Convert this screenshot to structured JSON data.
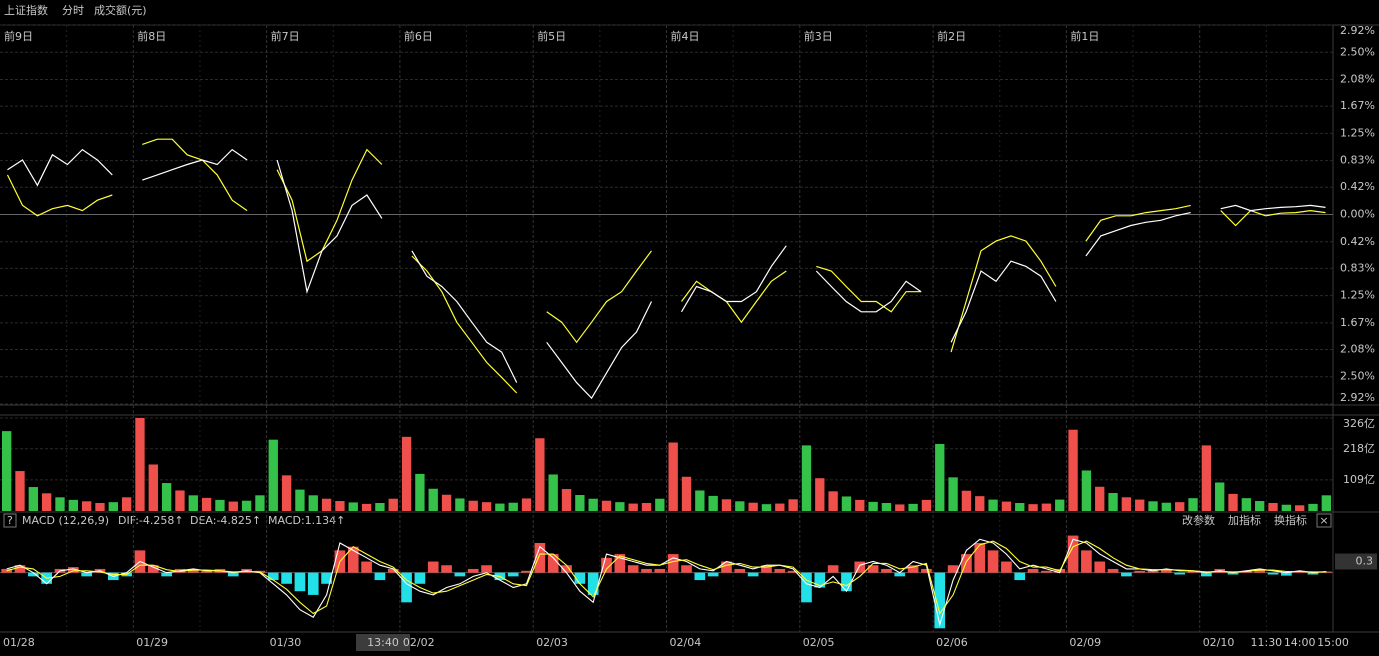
{
  "header": {
    "title": "上证指数",
    "tabs": [
      "分时",
      "成交额(元)"
    ]
  },
  "day_labels": [
    "前9日",
    "前8日",
    "前7日",
    "前6日",
    "前5日",
    "前4日",
    "前3日",
    "前2日",
    "前1日"
  ],
  "x_labels": [
    "01/28",
    "01/29",
    "01/30",
    "02/02",
    "02/03",
    "02/04",
    "02/05",
    "02/06",
    "02/09",
    "02/10",
    "11:30",
    "14:00",
    "15:00"
  ],
  "cursor_label": "13:40",
  "macd_header": {
    "help": "?",
    "name": "MACD (12,26,9)",
    "indicators": [
      {
        "label": "DIF:-4.258↑",
        "color": "#ffffff"
      },
      {
        "label": "DEA:-4.825↑",
        "color": "#ffff33"
      },
      {
        "label": "MACD:1.134↑",
        "color": "#ff4b4b"
      }
    ],
    "tools": [
      "改参数",
      "加指标",
      "换指标"
    ],
    "close": "×"
  },
  "chart_data": [
    {
      "type": "line",
      "ylim": [
        -2.92,
        2.92
      ],
      "yticks": [
        {
          "value": 2.92,
          "label": "2.92%"
        },
        {
          "value": 2.5,
          "label": "2.50%"
        },
        {
          "value": 2.08,
          "label": "2.08%"
        },
        {
          "value": 1.67,
          "label": "1.67%"
        },
        {
          "value": 1.25,
          "label": "1.25%"
        },
        {
          "value": 0.83,
          "label": "0.83%"
        },
        {
          "value": 0.42,
          "label": "0.42%"
        },
        {
          "value": 0,
          "label": "0.00%"
        },
        {
          "value": -0.42,
          "label": "0.42%"
        },
        {
          "value": -0.83,
          "label": "0.83%"
        },
        {
          "value": -1.25,
          "label": "1.25%"
        },
        {
          "value": -1.67,
          "label": "1.67%"
        },
        {
          "value": -2.08,
          "label": "2.08%"
        },
        {
          "value": -2.5,
          "label": "2.50%"
        },
        {
          "value": -2.92,
          "label": "2.92%"
        }
      ],
      "series": [
        {
          "color": "#ffff33",
          "values": [
            0.61,
            0.14,
            -0.02,
            0.09,
            0.14,
            0.06,
            0.22,
            0.3,
            null,
            1.08,
            1.16,
            1.16,
            0.92,
            0.84,
            0.61,
            0.22,
            0.06,
            null,
            0.69,
            0.22,
            -0.72,
            -0.56,
            -0.09,
            0.53,
            1.0,
            0.77,
            null,
            -0.64,
            -0.87,
            -1.19,
            -1.66,
            -1.97,
            -2.28,
            -2.51,
            -2.75,
            null,
            -1.5,
            -1.66,
            -1.97,
            -1.66,
            -1.34,
            -1.19,
            -0.87,
            -0.56,
            null,
            -1.34,
            -1.03,
            -1.19,
            -1.34,
            -1.66,
            -1.34,
            -1.03,
            -0.87,
            null,
            -0.8,
            -0.87,
            -1.11,
            -1.34,
            -1.34,
            -1.5,
            -1.19,
            -1.19,
            null,
            -2.12,
            -1.34,
            -0.56,
            -0.41,
            -0.33,
            -0.41,
            -0.72,
            -1.11,
            null,
            -0.41,
            -0.09,
            -0.02,
            -0.02,
            0.03,
            0.06,
            0.09,
            0.14,
            null,
            0.06,
            -0.17,
            0.06,
            -0.02,
            0.02,
            0.03,
            0.06,
            0.03
          ]
        },
        {
          "color": "#ffffff",
          "values": [
            0.69,
            0.84,
            0.45,
            0.92,
            0.77,
            1.0,
            0.84,
            0.61,
            null,
            0.53,
            0.61,
            0.69,
            0.77,
            0.84,
            0.77,
            1.0,
            0.84,
            null,
            0.84,
            0.06,
            -1.19,
            -0.56,
            -0.33,
            0.14,
            0.3,
            -0.06,
            null,
            -0.56,
            -0.95,
            -1.11,
            -1.34,
            -1.66,
            -1.97,
            -2.12,
            -2.59,
            null,
            -1.97,
            -2.28,
            -2.59,
            -2.83,
            -2.44,
            -2.05,
            -1.81,
            -1.34,
            null,
            -1.5,
            -1.11,
            -1.19,
            -1.34,
            -1.34,
            -1.19,
            -0.8,
            -0.48,
            null,
            -0.87,
            -1.11,
            -1.34,
            -1.5,
            -1.5,
            -1.34,
            -1.03,
            -1.19,
            null,
            -1.97,
            -1.5,
            -0.87,
            -1.03,
            -0.72,
            -0.8,
            -0.95,
            -1.34,
            null,
            -0.64,
            -0.33,
            -0.25,
            -0.17,
            -0.12,
            -0.09,
            -0.02,
            0.03,
            null,
            0.09,
            0.14,
            0.06,
            0.09,
            0.11,
            0.12,
            0.14,
            0.11
          ]
        }
      ]
    },
    {
      "type": "bar",
      "ylim": [
        0,
        326
      ],
      "yticks": [
        {
          "value": 326,
          "label": "326亿"
        },
        {
          "value": 218,
          "label": "218亿"
        },
        {
          "value": 109,
          "label": "109亿"
        }
      ],
      "up_color": "#f0504b",
      "down_color": "#35c24a",
      "values": [
        280,
        140,
        84,
        62,
        48,
        39,
        34,
        28,
        31,
        48,
        326,
        163,
        98,
        72,
        55,
        46,
        39,
        33,
        36,
        55,
        250,
        125,
        75,
        55,
        43,
        35,
        30,
        25,
        28,
        43,
        260,
        130,
        78,
        57,
        44,
        36,
        31,
        26,
        29,
        44,
        255,
        128,
        77,
        56,
        43,
        36,
        31,
        26,
        28,
        43,
        240,
        120,
        72,
        53,
        41,
        34,
        29,
        24,
        26,
        41,
        230,
        115,
        69,
        51,
        39,
        32,
        28,
        23,
        25,
        39,
        235,
        118,
        71,
        52,
        40,
        33,
        28,
        24,
        26,
        40,
        285,
        142,
        85,
        63,
        48,
        40,
        34,
        29,
        31,
        45,
        230,
        100,
        60,
        45,
        35,
        28,
        22,
        20,
        25,
        55
      ],
      "up": [
        false,
        true,
        false,
        true,
        false,
        false,
        true,
        true,
        false,
        true,
        true,
        true,
        false,
        true,
        false,
        true,
        false,
        true,
        false,
        false,
        false,
        true,
        false,
        false,
        true,
        true,
        false,
        true,
        false,
        true,
        true,
        false,
        false,
        true,
        false,
        true,
        true,
        false,
        false,
        true,
        true,
        false,
        true,
        false,
        false,
        true,
        false,
        true,
        true,
        false,
        true,
        true,
        false,
        false,
        true,
        false,
        true,
        false,
        true,
        true,
        false,
        true,
        true,
        false,
        true,
        false,
        false,
        true,
        false,
        true,
        false,
        false,
        true,
        true,
        false,
        true,
        false,
        true,
        true,
        false,
        true,
        false,
        true,
        false,
        true,
        true,
        false,
        false,
        true,
        false,
        true,
        false,
        true,
        false,
        false,
        true,
        false,
        true,
        false,
        false
      ]
    },
    {
      "type": "macd",
      "ylim": [
        -1.6,
        1.15
      ],
      "yticks": [
        0.3
      ],
      "hist_up_color": "#f0504b",
      "hist_down_color": "#22e0e8",
      "series": [
        {
          "values": [
            0.1,
            0.2,
            -0.1,
            -0.3,
            0.1,
            0.15,
            -0.1,
            0.1,
            -0.2,
            -0.1,
            0.6,
            0.2,
            -0.1,
            0.1,
            0.1,
            0.05,
            0.1,
            -0.1,
            0.1,
            0.05,
            -0.2,
            -0.3,
            -0.5,
            -0.6,
            -0.3,
            0.6,
            0.7,
            0.3,
            -0.2,
            0.1,
            -0.8,
            -0.3,
            0.3,
            0.2,
            -0.1,
            0.1,
            0.2,
            -0.2,
            -0.1,
            0.05,
            0.8,
            0.5,
            0.2,
            -0.3,
            -0.6,
            0.4,
            0.5,
            0.2,
            0.1,
            0.1,
            0.5,
            0.2,
            -0.2,
            -0.1,
            0.3,
            0.1,
            -0.1,
            0.2,
            0.1,
            0.05,
            -0.8,
            -0.4,
            0.2,
            -0.5,
            0.3,
            0.2,
            0.1,
            -0.1,
            0.2,
            0.1,
            -1.5,
            0.2,
            0.5,
            0.8,
            0.6,
            0.3,
            -0.2,
            0.1,
            0.05,
            0.1,
            1.0,
            0.6,
            0.3,
            0.1,
            -0.1,
            0.05,
            0.05,
            0.08,
            -0.05,
            0.05,
            -0.1,
            0.1,
            -0.05,
            0.05,
            0.08,
            -0.05,
            -0.08,
            0.05,
            -0.05,
            0.03
          ]
        },
        {
          "color": "#ffffff",
          "values": [
            0.1,
            0.2,
            0.0,
            -0.3,
            0.05,
            0.1,
            0.0,
            0.05,
            -0.1,
            0.0,
            0.3,
            0.15,
            0.0,
            0.05,
            0.1,
            0.05,
            0.05,
            0.0,
            0.05,
            0.0,
            -0.3,
            -0.6,
            -1.0,
            -1.2,
            -0.6,
            0.8,
            0.6,
            0.4,
            0.2,
            0.1,
            -0.3,
            -0.5,
            -0.6,
            -0.4,
            -0.3,
            -0.1,
            0.0,
            -0.2,
            -0.4,
            -0.3,
            0.7,
            0.4,
            0.0,
            -0.5,
            -0.8,
            0.5,
            0.4,
            0.3,
            0.2,
            0.2,
            0.4,
            0.3,
            0.1,
            0.05,
            0.3,
            0.2,
            0.1,
            0.2,
            0.2,
            0.1,
            -0.3,
            -0.4,
            -0.1,
            -0.5,
            0.2,
            0.3,
            0.2,
            0.0,
            0.3,
            0.2,
            -1.4,
            -0.2,
            0.6,
            0.9,
            0.8,
            0.5,
            0.1,
            0.2,
            0.1,
            0.0,
            0.9,
            0.8,
            0.5,
            0.3,
            0.1,
            0.1,
            0.05,
            0.1,
            0.05,
            0.05,
            0.0,
            0.05,
            0.0,
            0.05,
            0.1,
            0.05,
            0.0,
            0.05,
            0.0,
            0.03
          ]
        },
        {
          "color": "#ffff33",
          "values": [
            0.05,
            0.15,
            0.1,
            -0.15,
            -0.1,
            0.05,
            0.05,
            0.02,
            -0.05,
            -0.05,
            0.2,
            0.2,
            0.08,
            0.03,
            0.07,
            0.07,
            0.05,
            0.02,
            0.03,
            0.02,
            -0.2,
            -0.45,
            -0.8,
            -1.1,
            -0.9,
            0.3,
            0.7,
            0.5,
            0.3,
            0.15,
            -0.2,
            -0.4,
            -0.55,
            -0.5,
            -0.35,
            -0.2,
            -0.05,
            -0.1,
            -0.3,
            -0.35,
            0.5,
            0.5,
            0.2,
            -0.3,
            -0.65,
            0.1,
            0.45,
            0.35,
            0.25,
            0.2,
            0.3,
            0.35,
            0.2,
            0.08,
            0.2,
            0.25,
            0.15,
            0.15,
            0.2,
            0.15,
            -0.2,
            -0.35,
            -0.25,
            -0.35,
            -0.1,
            0.25,
            0.25,
            0.1,
            0.15,
            0.25,
            -1.1,
            -0.6,
            0.3,
            0.75,
            0.85,
            0.65,
            0.3,
            0.15,
            0.15,
            0.05,
            0.7,
            0.85,
            0.65,
            0.4,
            0.2,
            0.1,
            0.08,
            0.08,
            0.07,
            0.05,
            0.02,
            0.03,
            0.02,
            0.03,
            0.07,
            0.07,
            0.03,
            0.03,
            0.02,
            0.02
          ]
        }
      ]
    }
  ]
}
